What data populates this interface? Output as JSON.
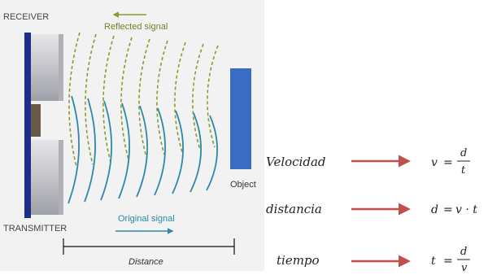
{
  "diagram": {
    "receiver_label": "RECEIVER",
    "transmitter_label": "TRANSMITTER",
    "reflected_label": "Reflected signal",
    "original_label": "Original signal",
    "distance_label": "Distance",
    "object_label": "Object"
  },
  "formulas": [
    {
      "word": "Velocidad",
      "lhs": "v",
      "num": "d",
      "den": "t"
    },
    {
      "word": "distancia",
      "lhs": "d",
      "rhs": "v · t"
    },
    {
      "word": "tiempo",
      "lhs": "t",
      "num": "d",
      "den": "v"
    }
  ],
  "colors": {
    "panel_bg": "#f2f2f2",
    "sensor_gray": "#c8c8cc",
    "board_blue": "#1e2f8a",
    "object_blue": "#3b6cc4",
    "reflected_wave": "#8a9a2e",
    "original_wave": "#2f88a8",
    "arrow_red": "#c0504d"
  }
}
